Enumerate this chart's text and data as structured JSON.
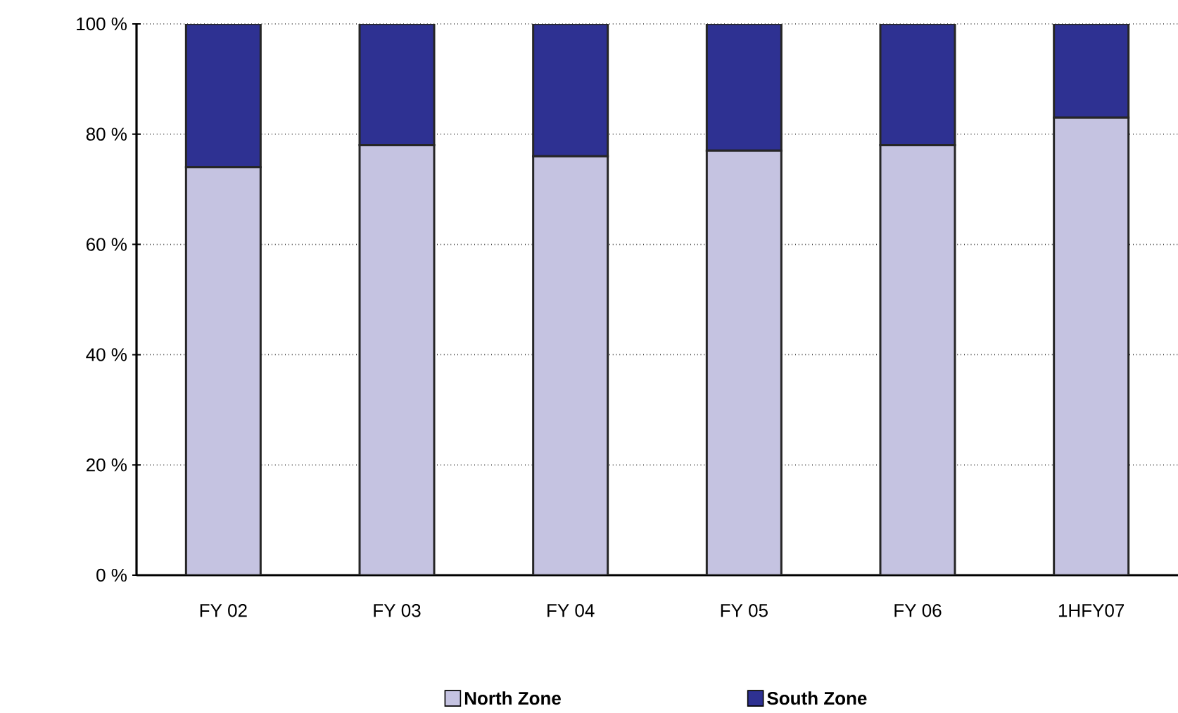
{
  "chart_data": {
    "type": "bar",
    "stacked": true,
    "categories": [
      "FY 02",
      "FY 03",
      "FY 04",
      "FY 05",
      "FY 06",
      "1HFY07"
    ],
    "series": [
      {
        "name": "North Zone",
        "color": "#c5c3e1",
        "values": [
          74,
          78,
          76,
          77,
          78,
          83
        ]
      },
      {
        "name": "South Zone",
        "color": "#2e3192",
        "values": [
          26,
          22,
          24,
          23,
          22,
          17
        ]
      }
    ],
    "ylim": [
      0,
      100
    ],
    "yticks": [
      {
        "value": 0,
        "label": "0 %"
      },
      {
        "value": 20,
        "label": "20 %"
      },
      {
        "value": 40,
        "label": "40 %"
      },
      {
        "value": 60,
        "label": "60 %"
      },
      {
        "value": 80,
        "label": "80 %"
      },
      {
        "value": 100,
        "label": "100 %"
      }
    ],
    "grid": "y",
    "legend": "bottom"
  }
}
